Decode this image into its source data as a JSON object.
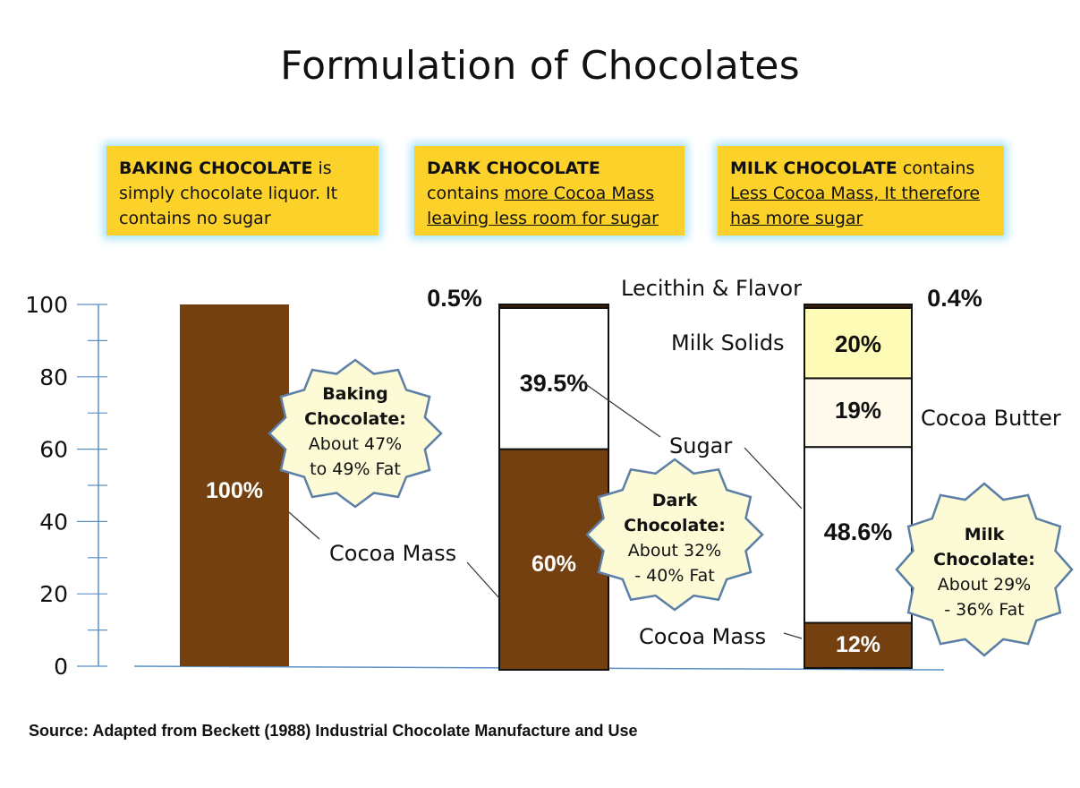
{
  "title": "Formulation of Chocolates",
  "notes": [
    {
      "bold": "BAKING CHOCOLATE",
      "rest": " is simply chocolate liquor.  It contains no sugar",
      "underlined": ""
    },
    {
      "bold": "DARK CHOCOLATE",
      "rest": " contains ",
      "underlined": "more Cocoa Mass leaving less room for sugar"
    },
    {
      "bold": "MILK CHOCOLATE",
      "rest": " contains ",
      "underlined": "Less Cocoa Mass, It  therefore has more sugar"
    }
  ],
  "source": "Source: Adapted from Beckett (1988) Industrial Chocolate Manufacture and Use",
  "chart_data": {
    "type": "bar",
    "stacked": true,
    "title": "Formulation of Chocolates",
    "ylim": [
      0,
      100
    ],
    "yticks": [
      "0",
      "20",
      "40",
      "60",
      "80",
      "100"
    ],
    "categories": [
      "",
      "",
      ""
    ],
    "series": [
      {
        "name": "Cocoa Mass",
        "values": [
          100,
          60,
          12
        ],
        "labels": [
          "100%",
          "60%",
          "12%"
        ],
        "color": "#74400f",
        "label_color": "#ffffff"
      },
      {
        "name": "Sugar",
        "values": [
          0,
          39.5,
          48.6
        ],
        "labels": [
          "",
          "39.5%",
          "48.6%"
        ],
        "color": "#ffffff",
        "label_color": "#111111"
      },
      {
        "name": "Cocoa Butter",
        "values": [
          0,
          0,
          19
        ],
        "labels": [
          "",
          "",
          "19%"
        ],
        "color": "#fffaeb",
        "label_color": "#111111"
      },
      {
        "name": "Milk Solids",
        "values": [
          0,
          0,
          20
        ],
        "labels": [
          "",
          "",
          "20%"
        ],
        "color": "#fdfbb5",
        "label_color": "#111111"
      },
      {
        "name": "Lecithin & Flavor",
        "values": [
          0,
          0.5,
          0.4
        ],
        "labels": [
          "",
          "0.5%",
          "0.4%"
        ],
        "color": "#3a1e05",
        "label_color": "#111111"
      }
    ],
    "callouts": [
      {
        "text": "Cocoa Mass"
      },
      {
        "text": "Sugar"
      },
      {
        "text": "Cocoa Mass"
      },
      {
        "text": "Lecithin & Flavor"
      },
      {
        "text": "Milk Solids"
      },
      {
        "text": "Cocoa Butter"
      }
    ],
    "bursts": [
      {
        "lines": [
          "Baking",
          "Chocolate:",
          "About 47%",
          "to 49%  Fat"
        ]
      },
      {
        "lines": [
          "Dark",
          "Chocolate:",
          "About 32%",
          "- 40% Fat"
        ]
      },
      {
        "lines": [
          "Milk",
          "Chocolate:",
          "About 29%",
          "- 36% Fat"
        ]
      }
    ]
  }
}
